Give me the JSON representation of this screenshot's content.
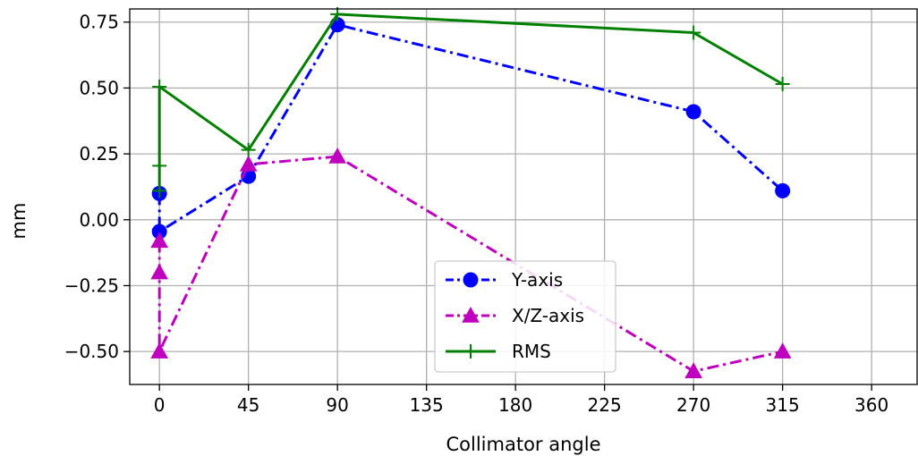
{
  "chart_data": {
    "type": "line",
    "title": "",
    "xlabel": "Collimator angle",
    "ylabel": "mm",
    "xlim": [
      -15,
      383
    ],
    "ylim": [
      -0.625,
      0.8
    ],
    "xticks": [
      0,
      45,
      90,
      135,
      180,
      225,
      270,
      315,
      360
    ],
    "yticks": [
      -0.5,
      -0.25,
      0.0,
      0.25,
      0.5,
      0.75
    ],
    "ytick_labels": [
      "−0.50",
      "−0.25",
      "0.00",
      "0.25",
      "0.50",
      "0.75"
    ],
    "grid": true,
    "legend_position": "lower-center",
    "series": [
      {
        "name": "Y-axis",
        "color": "#0000ff",
        "linestyle": "dash-dot",
        "marker": "circle",
        "x": [
          0,
          0,
          45,
          90,
          270,
          315
        ],
        "y": [
          0.1,
          -0.045,
          0.165,
          0.74,
          0.41,
          0.11
        ]
      },
      {
        "name": "X/Z-axis",
        "color": "#bf00bf",
        "linestyle": "dash-dot",
        "marker": "triangle",
        "x": [
          0,
          0,
          0,
          45,
          90,
          270,
          315
        ],
        "y": [
          -0.08,
          -0.2,
          -0.5,
          0.21,
          0.24,
          -0.575,
          -0.5
        ]
      },
      {
        "name": "RMS",
        "color": "#008000",
        "linestyle": "solid",
        "marker": "plus",
        "x": [
          0,
          0,
          0,
          45,
          90,
          270,
          315
        ],
        "y": [
          0.11,
          0.205,
          0.505,
          0.265,
          0.78,
          0.71,
          0.515
        ]
      }
    ]
  }
}
